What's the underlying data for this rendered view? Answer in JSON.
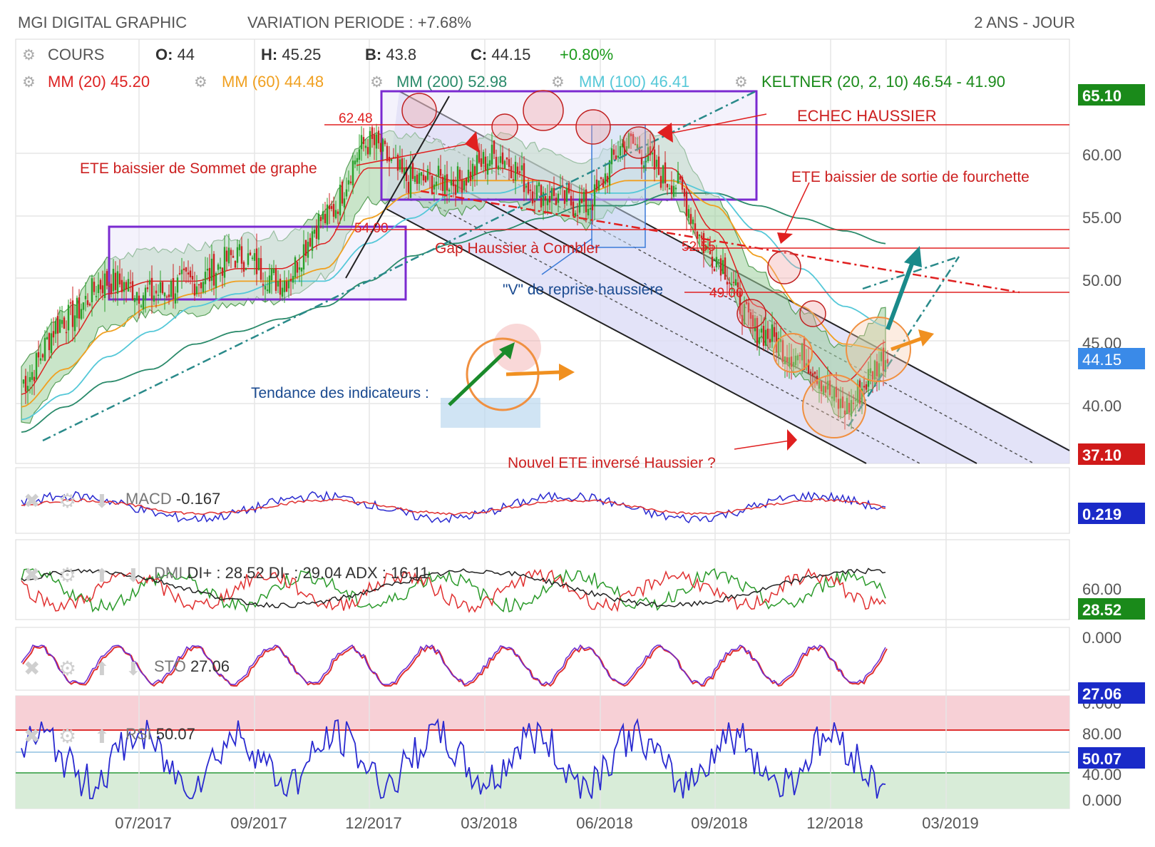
{
  "header": {
    "title": "MGI DIGITAL GRAPHIC",
    "variation": "VARIATION PERIODE : +7.68%",
    "period": "2 ANS - JOUR"
  },
  "quote": {
    "label": "COURS",
    "o_key": "O:",
    "o_val": " 44",
    "h_key": "H:",
    "h_val": " 45.25",
    "b_key": "B:",
    "b_val": " 43.8",
    "c_key": "C:",
    "c_val": " 44.15",
    "change": "+0.80%"
  },
  "indicators": {
    "mm20": "MM (20)  45.20",
    "mm60": "MM (60)  44.48",
    "mm200": "MM (200)  52.98",
    "mm100": "MM (100)  46.41",
    "keltner": "KELTNER (20, 2, 10)  46.54 - 41.90"
  },
  "colors": {
    "mm20": "#dd2222",
    "mm60": "#f0a020",
    "mm200": "#2a8a6a",
    "mm100": "#55c8d8",
    "keltner": "#1a8a1a",
    "annotation": "#cc2020",
    "annotation_blue": "#1a4a90",
    "channel": "#8a8ad8",
    "box": "#7a2ad0"
  },
  "price_axis": {
    "ticks": [
      "65.10",
      "60.00",
      "55.00",
      "50.00",
      "45.00",
      "40.00"
    ],
    "last_price": "44.15",
    "high_tag": "65.10",
    "low_tag": "37.10"
  },
  "x_axis": {
    "ticks": [
      "07/2017",
      "09/2017",
      "12/2017",
      "03/2018",
      "06/2018",
      "09/2018",
      "12/2018",
      "03/2019"
    ]
  },
  "annotations": {
    "level_6248": "62.48",
    "level_5400": "54.00",
    "level_5255": "52.55",
    "level_4900": "49.00",
    "echec": "ECHEC HAUSSIER",
    "ete_sommet": "ETE baissier de Sommet de graphe",
    "ete_sortie": "ETE baissier de sortie de fourchette",
    "gap": "Gap Haussier à Combler",
    "v_reprise": "\"V\" de reprise haussière",
    "tendance": "Tendance des indicateurs :",
    "nouvel_ete": "Nouvel ETE inversé Haussier ?"
  },
  "macd": {
    "label": "MACD",
    "value": " -0.167",
    "tag": "0.219"
  },
  "dmi": {
    "label": "DMI",
    "value": " DI+ : 28.52 DI- : 29.04 ADX : 16.11",
    "tag": "28.52",
    "ticks": [
      "60.00",
      "0.000"
    ]
  },
  "sto": {
    "label": "STO",
    "value": " 27.06",
    "tag": "27.06",
    "tick": "0.000"
  },
  "rsi": {
    "label": "RSI",
    "value": " 50.07",
    "tag": "50.07",
    "ticks": [
      "80.00",
      "40.00",
      "0.000"
    ]
  },
  "chart_data": {
    "type": "line",
    "title": "MGI DIGITAL GRAPHIC",
    "x": [
      "2017-05",
      "2017-06",
      "2017-07",
      "2017-08",
      "2017-09",
      "2017-10",
      "2017-11",
      "2017-12",
      "2018-01",
      "2018-02",
      "2018-03",
      "2018-04",
      "2018-05",
      "2018-06",
      "2018-07",
      "2018-08",
      "2018-09",
      "2018-10",
      "2018-11",
      "2018-12",
      "2019-01"
    ],
    "series": [
      {
        "name": "COURS",
        "values": [
          42,
          47,
          50,
          49,
          50,
          52,
          50,
          55,
          61,
          58,
          58,
          60,
          57,
          56,
          61,
          58,
          52,
          46,
          44,
          40,
          44
        ]
      },
      {
        "name": "MM (20)",
        "values": [
          41,
          45,
          49,
          50,
          50,
          51,
          51,
          53,
          59,
          59,
          58,
          59,
          58,
          57,
          59,
          59,
          54,
          48,
          45,
          42,
          45.2
        ]
      },
      {
        "name": "MM (60)",
        "values": [
          40,
          43,
          46,
          48,
          49,
          50,
          50,
          51,
          55,
          57,
          58,
          58,
          58,
          57,
          58,
          58,
          56,
          52,
          48,
          45,
          44.48
        ]
      },
      {
        "name": "MM (100)",
        "values": [
          39,
          41,
          44,
          46,
          48,
          49,
          50,
          50,
          53,
          55,
          57,
          57,
          58,
          57,
          57,
          58,
          57,
          54,
          51,
          48,
          46.41
        ]
      },
      {
        "name": "MM (200)",
        "values": [
          38,
          40,
          42,
          43,
          45,
          46,
          47,
          48,
          50,
          52,
          53,
          54,
          55,
          56,
          56,
          57,
          57,
          56,
          55,
          54,
          52.98
        ]
      }
    ],
    "levels": [
      62.48,
      54.0,
      52.55,
      49.0
    ],
    "ylim": [
      37.1,
      65.1
    ]
  }
}
